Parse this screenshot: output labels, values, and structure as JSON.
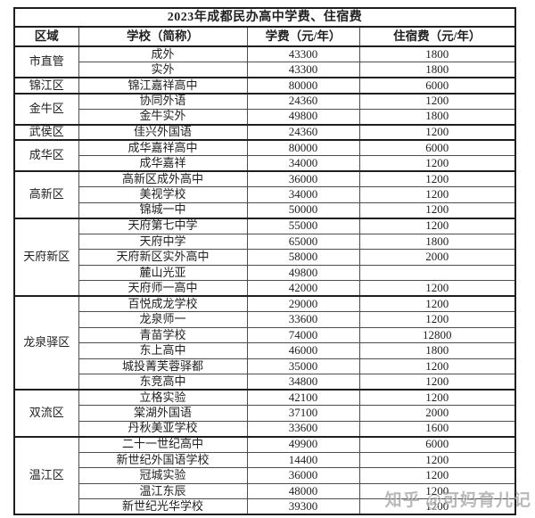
{
  "title": "2023年成都民办高中学费、住宿费",
  "watermark": "知乎 @可妈育儿记",
  "columns": [
    "区域",
    "学校（简称）",
    "学费（元/年）",
    "住宿费（元/年）"
  ],
  "groups": [
    {
      "region": "市直管",
      "schools": [
        {
          "name": "成外",
          "tuition": "43300",
          "boarding": "1800"
        },
        {
          "name": "实外",
          "tuition": "43300",
          "boarding": "1800"
        }
      ]
    },
    {
      "region": "锦江区",
      "schools": [
        {
          "name": "锦江嘉祥高中",
          "tuition": "80000",
          "boarding": "6000"
        }
      ]
    },
    {
      "region": "金牛区",
      "schools": [
        {
          "name": "协同外语",
          "tuition": "24360",
          "boarding": "1200"
        },
        {
          "name": "金牛实外",
          "tuition": "49800",
          "boarding": "1800"
        }
      ]
    },
    {
      "region": "武侯区",
      "schools": [
        {
          "name": "佳兴外国语",
          "tuition": "24360",
          "boarding": "1200"
        }
      ]
    },
    {
      "region": "成华区",
      "schools": [
        {
          "name": "成华嘉祥高中",
          "tuition": "80000",
          "boarding": "6000"
        },
        {
          "name": "成华嘉祥",
          "tuition": "34000",
          "boarding": "1200"
        }
      ]
    },
    {
      "region": "高新区",
      "schools": [
        {
          "name": "高新区成外高中",
          "tuition": "36000",
          "boarding": "1200"
        },
        {
          "name": "美视学校",
          "tuition": "34000",
          "boarding": "1200"
        },
        {
          "name": "锦城一中",
          "tuition": "50000",
          "boarding": "1200"
        }
      ]
    },
    {
      "region": "天府新区",
      "schools": [
        {
          "name": "天府第七中学",
          "tuition": "55000",
          "boarding": "1200"
        },
        {
          "name": "天府中学",
          "tuition": "65000",
          "boarding": "1800"
        },
        {
          "name": "天府新区实外高中",
          "tuition": "58000",
          "boarding": "2000"
        },
        {
          "name": "麓山光亚",
          "tuition": "49800",
          "boarding": ""
        },
        {
          "name": "天府师一高中",
          "tuition": "42000",
          "boarding": "1200"
        }
      ]
    },
    {
      "region": "龙泉驿区",
      "schools": [
        {
          "name": "百悦成龙学校",
          "tuition": "29000",
          "boarding": "1200"
        },
        {
          "name": "龙泉师一",
          "tuition": "33600",
          "boarding": "1200"
        },
        {
          "name": "青苗学校",
          "tuition": "74000",
          "boarding": "12800"
        },
        {
          "name": "东上高中",
          "tuition": "46000",
          "boarding": "1800"
        },
        {
          "name": "城投菁芙蓉驿都",
          "tuition": "35000",
          "boarding": "1200"
        },
        {
          "name": "东竞高中",
          "tuition": "34800",
          "boarding": "1200"
        }
      ]
    },
    {
      "region": "双流区",
      "schools": [
        {
          "name": "立格实验",
          "tuition": "42100",
          "boarding": "1200"
        },
        {
          "name": "棠湖外国语",
          "tuition": "37100",
          "boarding": "2000"
        },
        {
          "name": "丹秋美亚学校",
          "tuition": "33600",
          "boarding": "1600"
        }
      ]
    },
    {
      "region": "温江区",
      "schools": [
        {
          "name": "二十一世纪高中",
          "tuition": "49900",
          "boarding": "6000"
        },
        {
          "name": "新世纪外国语学校",
          "tuition": "14400",
          "boarding": "1200"
        },
        {
          "name": "冠城实验",
          "tuition": "36000",
          "boarding": "1200"
        },
        {
          "name": "温江东辰",
          "tuition": "48000",
          "boarding": "1200"
        },
        {
          "name": "新世纪光华学校",
          "tuition": "39300",
          "boarding": "1200"
        }
      ]
    }
  ],
  "colors": {
    "background": "#ffffff",
    "border_outer": "#1e1e1e",
    "border_inner": "#4d4d4d",
    "text": "#1f1f1f",
    "watermark": "#808080"
  }
}
